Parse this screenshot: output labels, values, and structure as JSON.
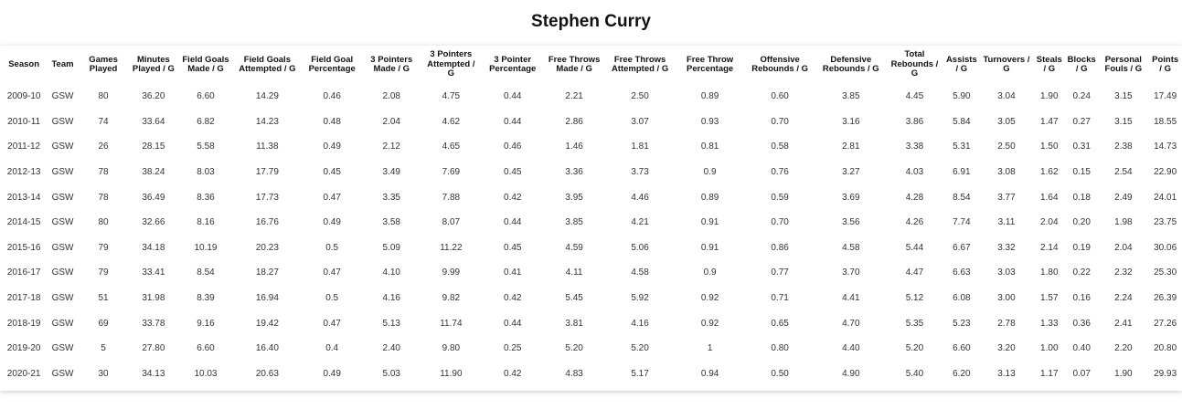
{
  "page": {
    "title": "Stephen Curry"
  },
  "chart_data": {
    "type": "table",
    "title": "Stephen Curry",
    "columns": [
      "Season",
      "Team",
      "Games Played",
      "Minutes Played / G",
      "Field Goals Made / G",
      "Field Goals Attempted / G",
      "Field Goal Percentage",
      "3 Pointers Made / G",
      "3 Pointers Attempted / G",
      "3 Pointer Percentage",
      "Free Throws Made / G",
      "Free Throws Attempted / G",
      "Free Throw Percentage",
      "Offensive Rebounds / G",
      "Defensive Rebounds / G",
      "Total Rebounds / G",
      "Assists / G",
      "Turnovers / G",
      "Steals / G",
      "Blocks / G",
      "Personal Fouls / G",
      "Points / G"
    ],
    "rows": [
      [
        "2009-10",
        "GSW",
        "80",
        "36.20",
        "6.60",
        "14.29",
        "0.46",
        "2.08",
        "4.75",
        "0.44",
        "2.21",
        "2.50",
        "0.89",
        "0.60",
        "3.85",
        "4.45",
        "5.90",
        "3.04",
        "1.90",
        "0.24",
        "3.15",
        "17.49"
      ],
      [
        "2010-11",
        "GSW",
        "74",
        "33.64",
        "6.82",
        "14.23",
        "0.48",
        "2.04",
        "4.62",
        "0.44",
        "2.86",
        "3.07",
        "0.93",
        "0.70",
        "3.16",
        "3.86",
        "5.84",
        "3.05",
        "1.47",
        "0.27",
        "3.15",
        "18.55"
      ],
      [
        "2011-12",
        "GSW",
        "26",
        "28.15",
        "5.58",
        "11.38",
        "0.49",
        "2.12",
        "4.65",
        "0.46",
        "1.46",
        "1.81",
        "0.81",
        "0.58",
        "2.81",
        "3.38",
        "5.31",
        "2.50",
        "1.50",
        "0.31",
        "2.38",
        "14.73"
      ],
      [
        "2012-13",
        "GSW",
        "78",
        "38.24",
        "8.03",
        "17.79",
        "0.45",
        "3.49",
        "7.69",
        "0.45",
        "3.36",
        "3.73",
        "0.9",
        "0.76",
        "3.27",
        "4.03",
        "6.91",
        "3.08",
        "1.62",
        "0.15",
        "2.54",
        "22.90"
      ],
      [
        "2013-14",
        "GSW",
        "78",
        "36.49",
        "8.36",
        "17.73",
        "0.47",
        "3.35",
        "7.88",
        "0.42",
        "3.95",
        "4.46",
        "0.89",
        "0.59",
        "3.69",
        "4.28",
        "8.54",
        "3.77",
        "1.64",
        "0.18",
        "2.49",
        "24.01"
      ],
      [
        "2014-15",
        "GSW",
        "80",
        "32.66",
        "8.16",
        "16.76",
        "0.49",
        "3.58",
        "8.07",
        "0.44",
        "3.85",
        "4.21",
        "0.91",
        "0.70",
        "3.56",
        "4.26",
        "7.74",
        "3.11",
        "2.04",
        "0.20",
        "1.98",
        "23.75"
      ],
      [
        "2015-16",
        "GSW",
        "79",
        "34.18",
        "10.19",
        "20.23",
        "0.5",
        "5.09",
        "11.22",
        "0.45",
        "4.59",
        "5.06",
        "0.91",
        "0.86",
        "4.58",
        "5.44",
        "6.67",
        "3.32",
        "2.14",
        "0.19",
        "2.04",
        "30.06"
      ],
      [
        "2016-17",
        "GSW",
        "79",
        "33.41",
        "8.54",
        "18.27",
        "0.47",
        "4.10",
        "9.99",
        "0.41",
        "4.11",
        "4.58",
        "0.9",
        "0.77",
        "3.70",
        "4.47",
        "6.63",
        "3.03",
        "1.80",
        "0.22",
        "2.32",
        "25.30"
      ],
      [
        "2017-18",
        "GSW",
        "51",
        "31.98",
        "8.39",
        "16.94",
        "0.5",
        "4.16",
        "9.82",
        "0.42",
        "5.45",
        "5.92",
        "0.92",
        "0.71",
        "4.41",
        "5.12",
        "6.08",
        "3.00",
        "1.57",
        "0.16",
        "2.24",
        "26.39"
      ],
      [
        "2018-19",
        "GSW",
        "69",
        "33.78",
        "9.16",
        "19.42",
        "0.47",
        "5.13",
        "11.74",
        "0.44",
        "3.81",
        "4.16",
        "0.92",
        "0.65",
        "4.70",
        "5.35",
        "5.23",
        "2.78",
        "1.33",
        "0.36",
        "2.41",
        "27.26"
      ],
      [
        "2019-20",
        "GSW",
        "5",
        "27.80",
        "6.60",
        "16.40",
        "0.4",
        "2.40",
        "9.80",
        "0.25",
        "5.20",
        "5.20",
        "1",
        "0.80",
        "4.40",
        "5.20",
        "6.60",
        "3.20",
        "1.00",
        "0.40",
        "2.20",
        "20.80"
      ],
      [
        "2020-21",
        "GSW",
        "30",
        "34.13",
        "10.03",
        "20.63",
        "0.49",
        "5.03",
        "11.90",
        "0.42",
        "4.83",
        "5.17",
        "0.94",
        "0.50",
        "4.90",
        "5.40",
        "6.20",
        "3.13",
        "1.17",
        "0.07",
        "1.90",
        "29.93"
      ]
    ]
  }
}
